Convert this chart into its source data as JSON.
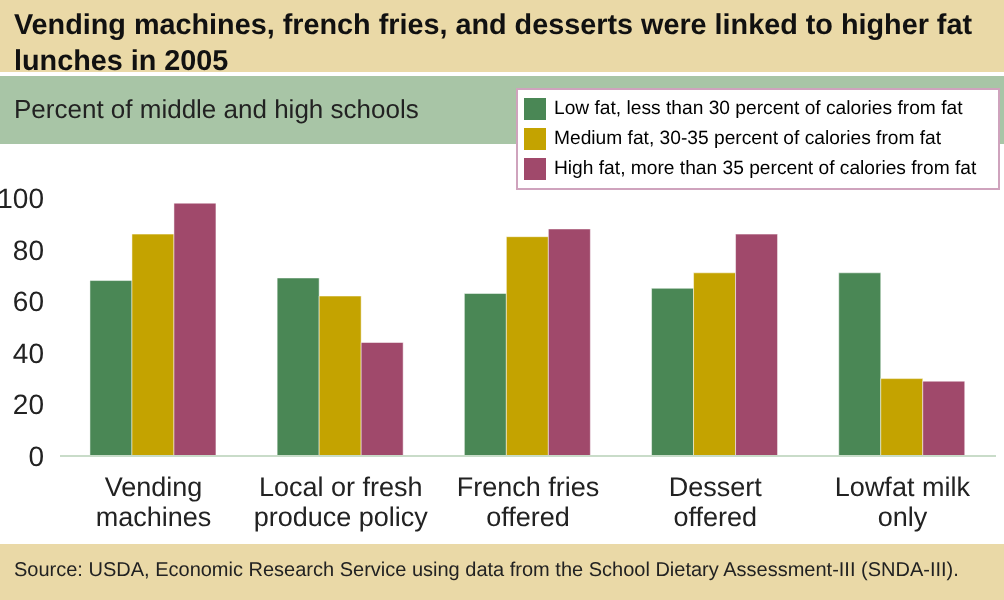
{
  "chart_data": {
    "type": "bar",
    "title": "Vending machines, french fries, and desserts were linked to higher fat lunches in 2005",
    "subtitle": "Percent of middle and high schools",
    "categories": [
      "Vending machines",
      "Local or fresh produce policy",
      "French fries offered",
      "Dessert offered",
      "Lowfat milk only"
    ],
    "series": [
      {
        "name": "Low fat, less than 30 percent of calories from fat",
        "color": "#4a8755",
        "values": [
          68,
          69,
          63,
          65,
          71
        ]
      },
      {
        "name": "Medium fat, 30-35 percent of calories from fat",
        "color": "#c4a300",
        "values": [
          86,
          62,
          85,
          71,
          30
        ]
      },
      {
        "name": "High fat, more than 35 percent of calories from fat",
        "color": "#a0496b",
        "values": [
          98,
          44,
          88,
          86,
          29
        ]
      }
    ],
    "ylim": [
      0,
      100
    ],
    "yticks": [
      0,
      20,
      40,
      60,
      80,
      100
    ],
    "grid": false,
    "legend": "top right",
    "annotations": [
      "Source:  USDA, Economic Research Service using data from the School Dietary Assessment-III (SNDA-III)."
    ]
  }
}
